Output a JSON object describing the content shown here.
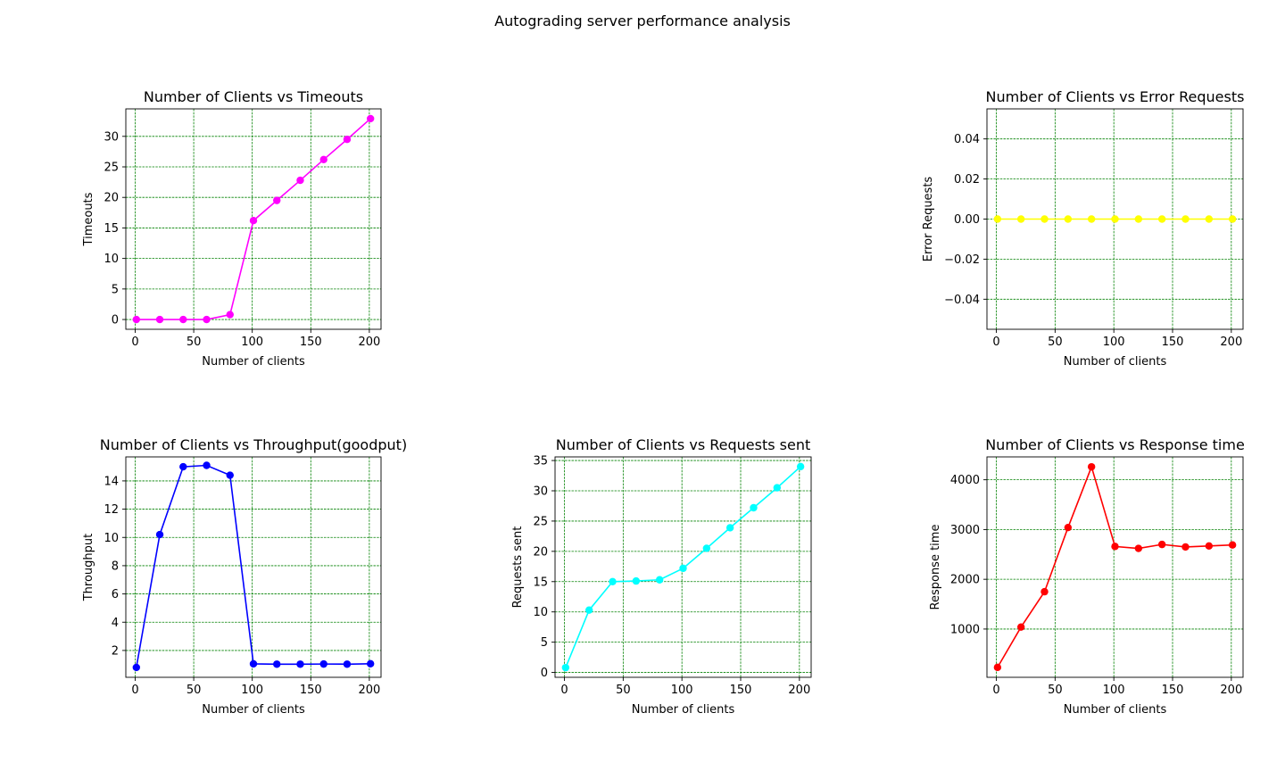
{
  "figure": {
    "title": "Autograding server performance analysis"
  },
  "chart_data": [
    {
      "id": "timeouts",
      "type": "line",
      "title": "Number of Clients vs Timeouts",
      "xlabel": "Number of clients",
      "ylabel": "Timeouts",
      "color": "#ff00ff",
      "xlim": [
        -8,
        210
      ],
      "ylim": [
        -1.6,
        34.5
      ],
      "xticks": [
        0,
        50,
        100,
        150,
        200
      ],
      "yticks": [
        0,
        5,
        10,
        15,
        20,
        25,
        30
      ],
      "grid": true,
      "x": [
        1,
        21,
        41,
        61,
        81,
        101,
        121,
        141,
        161,
        181,
        201
      ],
      "y": [
        0,
        0,
        0,
        0,
        0.8,
        16.2,
        19.5,
        22.8,
        26.2,
        29.5,
        32.9
      ]
    },
    {
      "id": "errors",
      "type": "line",
      "title": "Number of Clients vs Error Requests",
      "xlabel": "Number of clients",
      "ylabel": "Error Requests",
      "color": "#ffff00",
      "xlim": [
        -8,
        210
      ],
      "ylim": [
        -0.055,
        0.055
      ],
      "xticks": [
        0,
        50,
        100,
        150,
        200
      ],
      "yticks": [
        -0.04,
        -0.02,
        0.0,
        0.02,
        0.04
      ],
      "ytick_labels": [
        "−0.04",
        "−0.02",
        "0.00",
        "0.02",
        "0.04"
      ],
      "grid": true,
      "x": [
        1,
        21,
        41,
        61,
        81,
        101,
        121,
        141,
        161,
        181,
        201
      ],
      "y": [
        0,
        0,
        0,
        0,
        0,
        0,
        0,
        0,
        0,
        0,
        0
      ]
    },
    {
      "id": "throughput",
      "type": "line",
      "title": "Number of Clients vs Throughput(goodput)",
      "xlabel": "Number of clients",
      "ylabel": "Throughput",
      "color": "#0000ff",
      "xlim": [
        -8,
        210
      ],
      "ylim": [
        0.1,
        15.7
      ],
      "xticks": [
        0,
        50,
        100,
        150,
        200
      ],
      "yticks": [
        2,
        4,
        6,
        8,
        10,
        12,
        14
      ],
      "grid": true,
      "x": [
        1,
        21,
        41,
        61,
        81,
        101,
        121,
        141,
        161,
        181,
        201
      ],
      "y": [
        0.8,
        10.2,
        15.0,
        15.1,
        14.4,
        1.05,
        1.03,
        1.03,
        1.04,
        1.03,
        1.06
      ]
    },
    {
      "id": "requests",
      "type": "line",
      "title": "Number of Clients vs Requests sent",
      "xlabel": "Number of clients",
      "ylabel": "Requests sent",
      "color": "#00ffff",
      "xlim": [
        -8,
        210
      ],
      "ylim": [
        -0.8,
        35.6
      ],
      "xticks": [
        0,
        50,
        100,
        150,
        200
      ],
      "yticks": [
        0,
        5,
        10,
        15,
        20,
        25,
        30,
        35
      ],
      "grid": true,
      "x": [
        1,
        21,
        41,
        61,
        81,
        101,
        121,
        141,
        161,
        181,
        201
      ],
      "y": [
        0.8,
        10.3,
        15.0,
        15.1,
        15.3,
        17.2,
        20.5,
        23.9,
        27.2,
        30.5,
        34.0
      ]
    },
    {
      "id": "response",
      "type": "line",
      "title": "Number of Clients vs Response time",
      "xlabel": "Number of clients",
      "ylabel": "Response time",
      "color": "#ff0000",
      "xlim": [
        -8,
        210
      ],
      "ylim": [
        30,
        4460
      ],
      "xticks": [
        0,
        50,
        100,
        150,
        200
      ],
      "yticks": [
        1000,
        2000,
        3000,
        4000
      ],
      "grid": true,
      "x": [
        1,
        21,
        41,
        61,
        81,
        101,
        121,
        141,
        161,
        181,
        201
      ],
      "y": [
        230,
        1040,
        1750,
        3040,
        4260,
        2660,
        2620,
        2700,
        2650,
        2670,
        2690
      ]
    }
  ]
}
